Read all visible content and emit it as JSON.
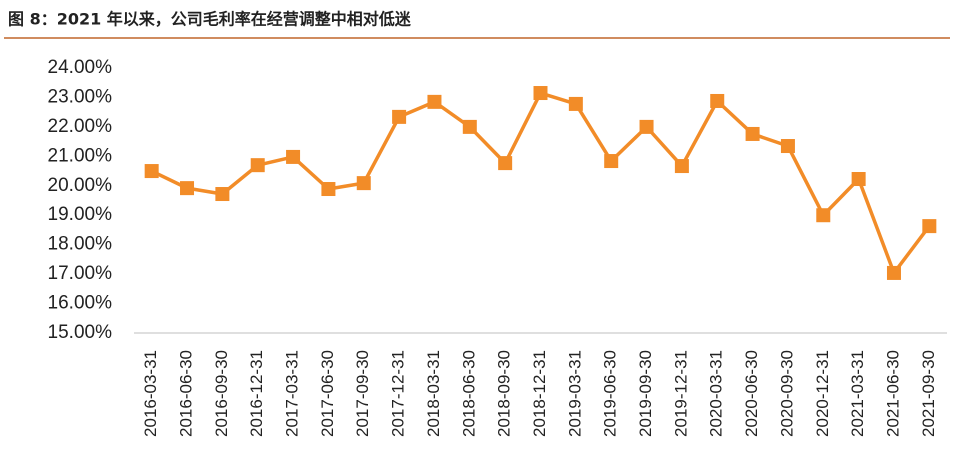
{
  "chart_data": {
    "type": "line",
    "title": "图 8：2021 年以来，公司毛利率在经营调整中相对低迷",
    "categories": [
      "2016-03-31",
      "2016-06-30",
      "2016-09-30",
      "2016-12-31",
      "2017-03-31",
      "2017-06-30",
      "2017-09-30",
      "2017-12-31",
      "2018-03-31",
      "2018-06-30",
      "2018-09-30",
      "2018-12-31",
      "2019-03-31",
      "2019-06-30",
      "2019-09-30",
      "2019-12-31",
      "2020-03-31",
      "2020-06-30",
      "2020-09-30",
      "2020-12-31",
      "2021-03-31",
      "2021-06-30",
      "2021-09-30"
    ],
    "series": [
      {
        "color": "#f28c28",
        "values": [
          20.5,
          19.92,
          19.72,
          20.7,
          20.98,
          19.89,
          20.09,
          22.34,
          22.85,
          22.0,
          20.77,
          23.15,
          22.78,
          20.84,
          22.0,
          20.67,
          22.88,
          21.76,
          21.35,
          19.0,
          20.23,
          17.04,
          18.63
        ]
      }
    ],
    "ylim": [
      15,
      24
    ],
    "yticks": [
      {
        "value": 15,
        "label": "15.00%"
      },
      {
        "value": 16,
        "label": "16.00%"
      },
      {
        "value": 17,
        "label": "17.00%"
      },
      {
        "value": 18,
        "label": "18.00%"
      },
      {
        "value": 19,
        "label": "19.00%"
      },
      {
        "value": 20,
        "label": "20.00%"
      },
      {
        "value": 21,
        "label": "21.00%"
      },
      {
        "value": 22,
        "label": "22.00%"
      },
      {
        "value": 23,
        "label": "23.00%"
      },
      {
        "value": 24,
        "label": "24.00%"
      }
    ],
    "grid": false
  }
}
